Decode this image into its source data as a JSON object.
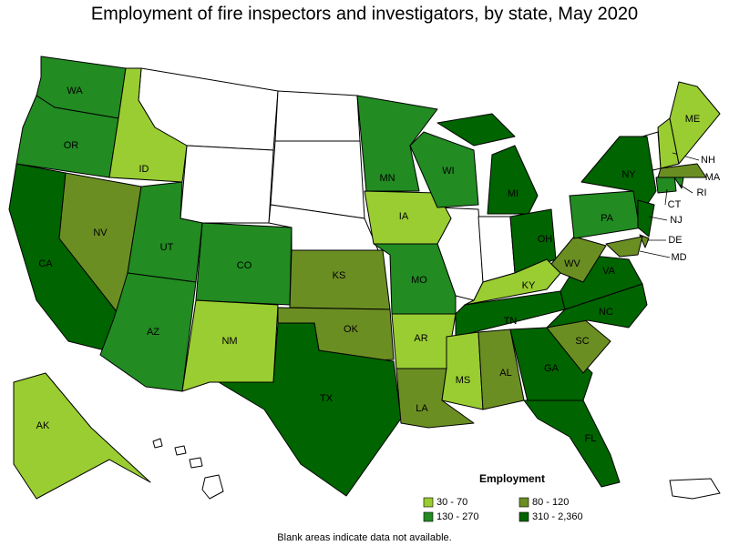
{
  "title": "Employment of fire inspectors and investigators, by state, May 2020",
  "legend": {
    "title": "Employment",
    "items": [
      {
        "label": "30 - 70",
        "color": "#9acd32"
      },
      {
        "label": "80 - 120",
        "color": "#6b8e23"
      },
      {
        "label": "130 - 270",
        "color": "#228b22"
      },
      {
        "label": "310 - 2,360",
        "color": "#006400"
      }
    ]
  },
  "states": [
    {
      "name": "WA",
      "bin": 2
    },
    {
      "name": "OR",
      "bin": 2
    },
    {
      "name": "CA",
      "bin": 3
    },
    {
      "name": "NV",
      "bin": 1
    },
    {
      "name": "ID",
      "bin": 0
    },
    {
      "name": "UT",
      "bin": 2
    },
    {
      "name": "AZ",
      "bin": 2
    },
    {
      "name": "CO",
      "bin": 2
    },
    {
      "name": "NM",
      "bin": 0
    },
    {
      "name": "KS",
      "bin": 1
    },
    {
      "name": "OK",
      "bin": 1
    },
    {
      "name": "TX",
      "bin": 3
    },
    {
      "name": "MN",
      "bin": 2
    },
    {
      "name": "IA",
      "bin": 0
    },
    {
      "name": "MO",
      "bin": 2
    },
    {
      "name": "AR",
      "bin": 0
    },
    {
      "name": "LA",
      "bin": 1
    },
    {
      "name": "WI",
      "bin": 2
    },
    {
      "name": "MI",
      "bin": 3
    },
    {
      "name": "OH",
      "bin": 3
    },
    {
      "name": "KY",
      "bin": 0
    },
    {
      "name": "TN",
      "bin": 3
    },
    {
      "name": "MS",
      "bin": 0
    },
    {
      "name": "AL",
      "bin": 1
    },
    {
      "name": "GA",
      "bin": 3
    },
    {
      "name": "FL",
      "bin": 3
    },
    {
      "name": "SC",
      "bin": 1
    },
    {
      "name": "NC",
      "bin": 3
    },
    {
      "name": "VA",
      "bin": 3
    },
    {
      "name": "WV",
      "bin": 1
    },
    {
      "name": "PA",
      "bin": 2
    },
    {
      "name": "NY",
      "bin": 3
    },
    {
      "name": "NJ",
      "bin": 3
    },
    {
      "name": "DE",
      "bin": 1
    },
    {
      "name": "MD",
      "bin": 1
    },
    {
      "name": "CT",
      "bin": 2
    },
    {
      "name": "RI",
      "bin": 2
    },
    {
      "name": "MA",
      "bin": 1
    },
    {
      "name": "NH",
      "bin": 0
    },
    {
      "name": "ME",
      "bin": 0
    },
    {
      "name": "AK",
      "bin": 0
    }
  ],
  "note": "Blank areas indicate data not available."
}
